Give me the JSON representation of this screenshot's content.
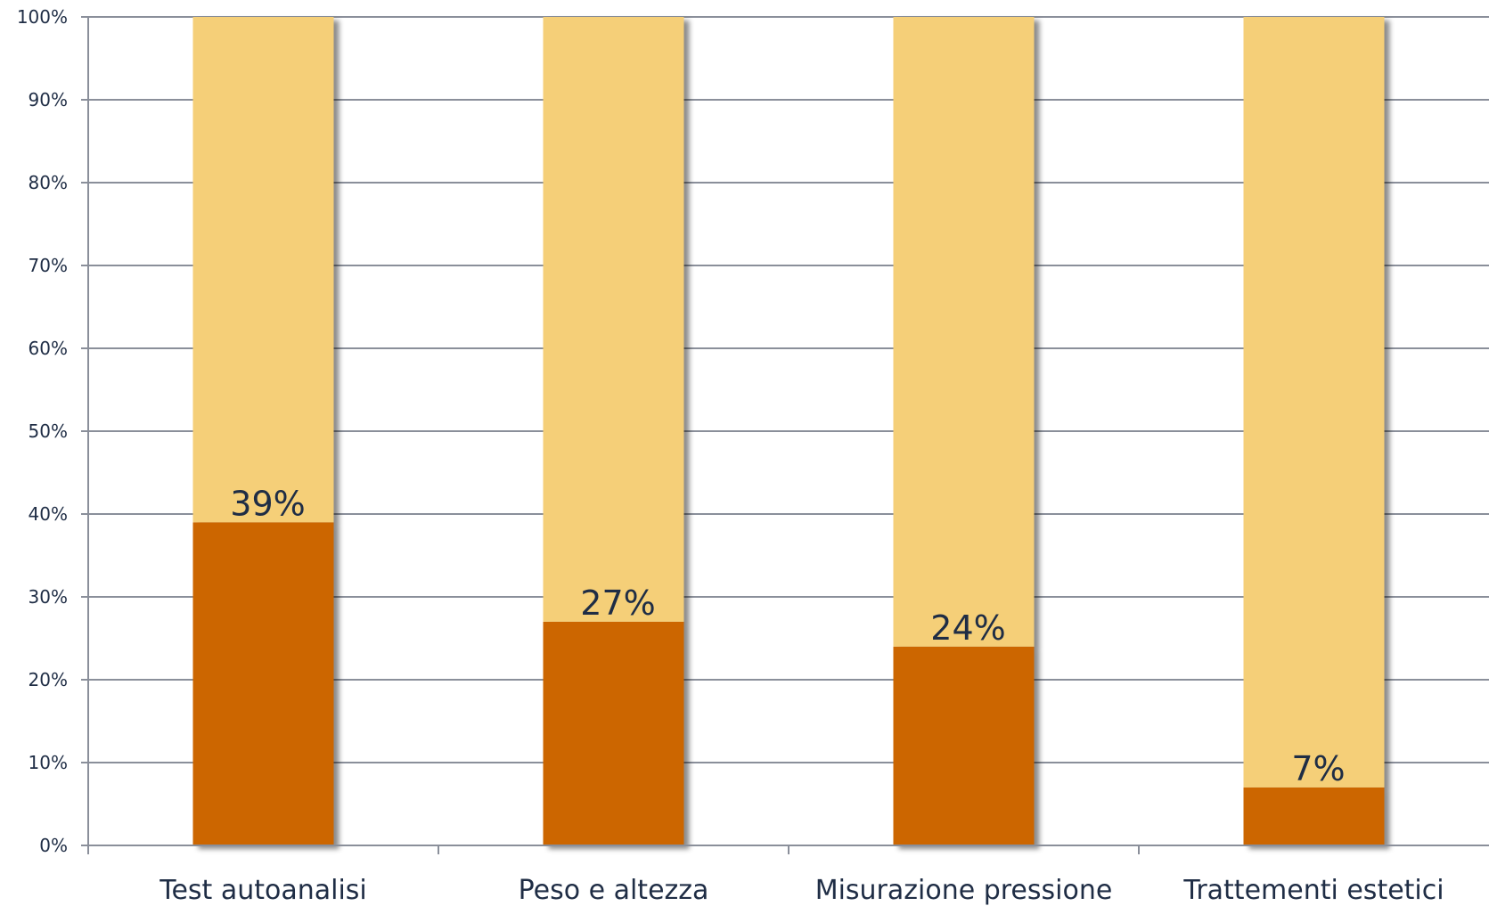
{
  "chart_data": {
    "type": "bar",
    "stacked": true,
    "percent_stacked": true,
    "categories": [
      "Test autoanalisi",
      "Peso e altezza",
      "Misurazione pressione",
      "Trattementi estetici"
    ],
    "series": [
      {
        "values": [
          39,
          27,
          24,
          7
        ],
        "color": "#cc6600"
      },
      {
        "values": [
          61,
          73,
          76,
          93
        ],
        "color": "#f5cf78"
      }
    ],
    "data_labels": [
      "39%",
      "27%",
      "24%",
      "7%"
    ],
    "y_ticks": [
      "0%",
      "10%",
      "20%",
      "30%",
      "40%",
      "50%",
      "60%",
      "70%",
      "80%",
      "90%",
      "100%"
    ],
    "ylim": [
      0,
      100
    ],
    "grid": true,
    "legend": "none",
    "title": "",
    "xlabel": "",
    "ylabel": "",
    "colors": {
      "grid": "#8a8f9a",
      "text": "#1f2d45"
    }
  }
}
